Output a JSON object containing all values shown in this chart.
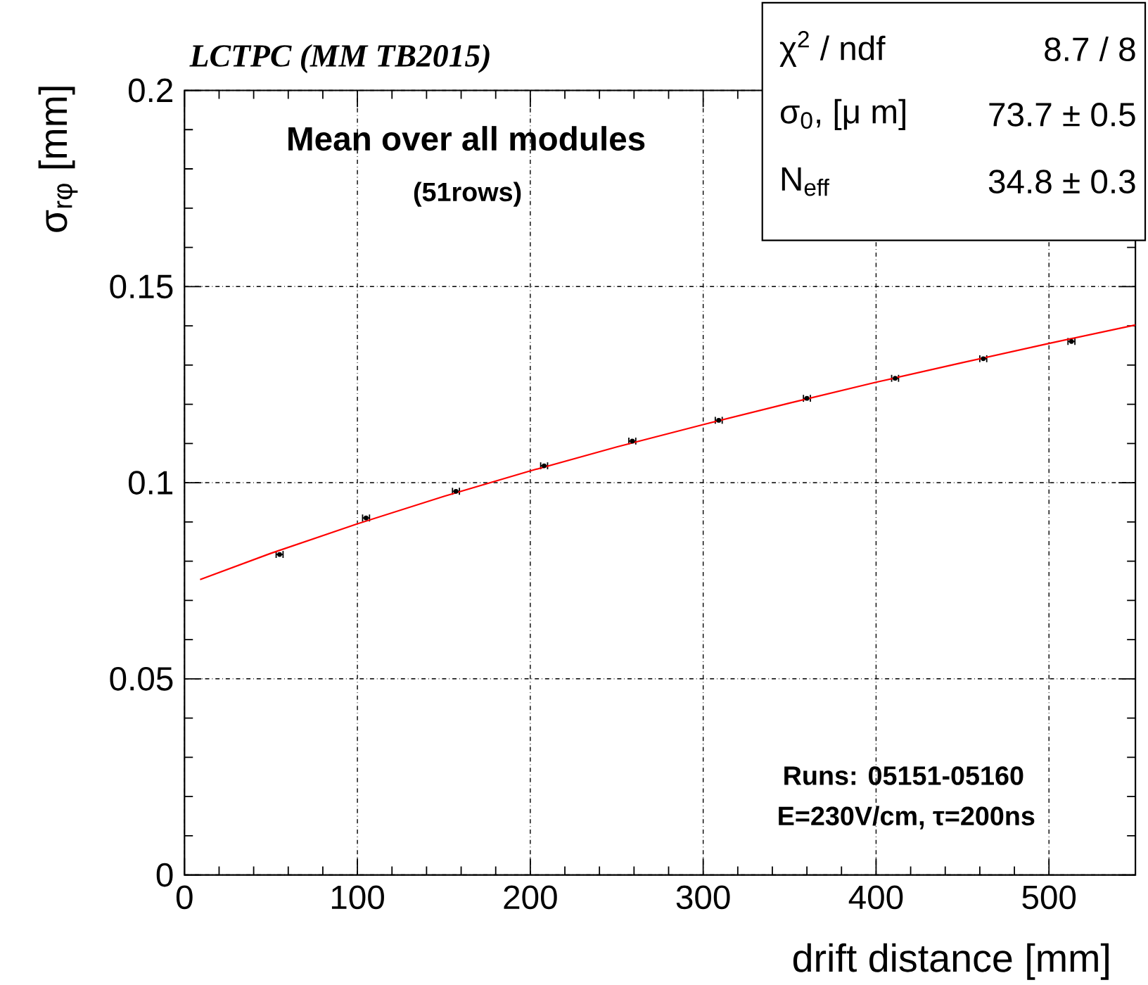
{
  "chart_data": {
    "type": "scatter",
    "title": "LCTPC (MM TB2015)",
    "xlabel": "drift distance [mm]",
    "ylabel": "σ$_{rφ}$ [mm]",
    "annotations": [
      "Mean over all modules",
      "(51rows)",
      "Runs: 05151-05160",
      "E=230V/cm,  τ=200ns",
      "χ$^{2}$ / ndf",
      "8.7 / 8",
      "σ$_{0}$, [μ m]",
      "73.7 ± 0.5",
      "N$_{eff}$",
      "34.8 ± 0.3"
    ],
    "xlim": [
      0,
      550
    ],
    "ylim": [
      0,
      0.2
    ],
    "xticks": [
      0,
      100,
      200,
      300,
      400,
      500
    ],
    "yticks": [
      0,
      0.05,
      0.1,
      0.15,
      0.2
    ],
    "grid": true,
    "series": [
      {
        "color": "#000000",
        "marker": "circle",
        "x": [
          55,
          105,
          157,
          208,
          259,
          309,
          360,
          411,
          462,
          513
        ],
        "values": [
          0.0817,
          0.091,
          0.0978,
          0.1043,
          0.1106,
          0.1159,
          0.1215,
          0.1266,
          0.1316,
          0.136
        ],
        "xerrors": [
          2,
          2,
          2,
          2,
          2,
          2,
          2,
          2,
          2,
          2
        ]
      },
      {
        "type": "line",
        "color": "#ff0000",
        "marker": "none",
        "line_style": "solid",
        "x": [
          9,
          50,
          100,
          150,
          200,
          250,
          300,
          350,
          400,
          450,
          500,
          550
        ],
        "values": [
          0.0753,
          0.082,
          0.0895,
          0.0965,
          0.103,
          0.1091,
          0.1148,
          0.1203,
          0.1256,
          0.1306,
          0.1355,
          0.1402
        ]
      }
    ]
  }
}
